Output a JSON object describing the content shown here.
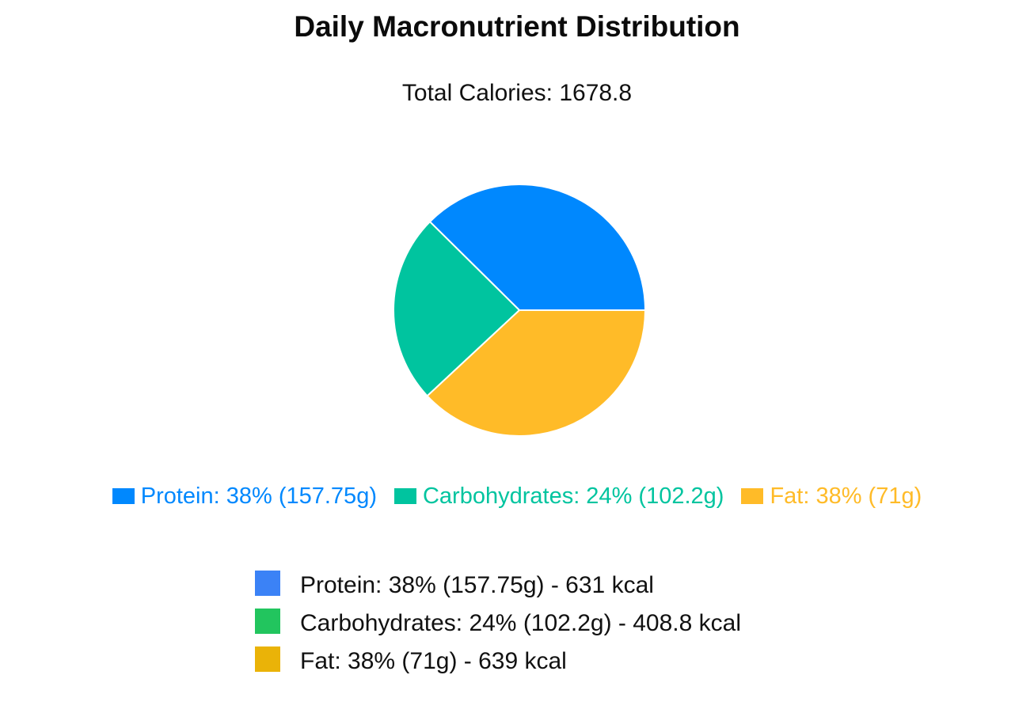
{
  "chart_data": {
    "type": "pie",
    "title": "Daily Macronutrient Distribution",
    "subtitle": "Total Calories: 1678.8",
    "series": [
      {
        "name": "Protein",
        "value": 631,
        "legend_label": "Protein: 38% (157.75g)",
        "color": "#0088FE"
      },
      {
        "name": "Carbohydrates",
        "value": 408.8,
        "legend_label": "Carbohydrates: 24% (102.2g)",
        "color": "#00C49F"
      },
      {
        "name": "Fat",
        "value": 639,
        "legend_label": "Fat: 38% (71g)",
        "color": "#FFBB28"
      }
    ],
    "legend_position": "bottom"
  },
  "summary": [
    {
      "text": "Protein: 38% (157.75g) - 631 kcal",
      "color": "#3B82F6"
    },
    {
      "text": "Carbohydrates: 24% (102.2g) - 408.8 kcal",
      "color": "#22C55E"
    },
    {
      "text": "Fat: 38% (71g) - 639 kcal",
      "color": "#EAB308"
    }
  ]
}
